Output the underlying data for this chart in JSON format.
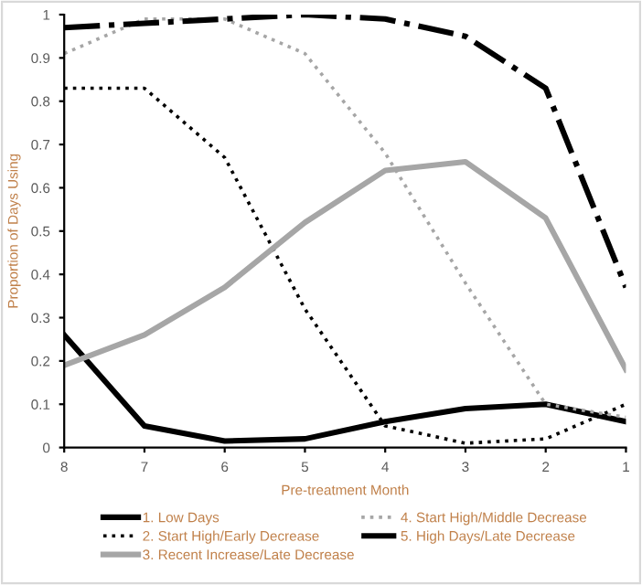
{
  "chart_data": {
    "type": "line",
    "xlabel": "Pre-treatment Month",
    "ylabel": "Proportion of Days Using",
    "categories": [
      "8",
      "7",
      "6",
      "5",
      "4",
      "3",
      "2",
      "1"
    ],
    "ylim": [
      0,
      1
    ],
    "yticks": [
      0,
      0.1,
      0.2,
      0.3,
      0.4,
      0.5,
      0.6,
      0.7,
      0.8,
      0.9,
      1
    ],
    "grid": false,
    "legend": "bottom",
    "marker": "none",
    "series": [
      {
        "name": "1. Low Days",
        "color": "#000000",
        "line_style": "solid",
        "values": [
          0.26,
          0.05,
          0.015,
          0.02,
          0.06,
          0.09,
          0.1,
          0.06
        ]
      },
      {
        "name": "2. Start High/Early Decrease",
        "color": "#000000",
        "line_style": "dotted",
        "values": [
          0.83,
          0.83,
          0.67,
          0.32,
          0.05,
          0.01,
          0.02,
          0.1
        ]
      },
      {
        "name": "3. Recent Increase/Late Decrease",
        "color": "#a6a6a6",
        "line_style": "solid",
        "values": [
          0.19,
          0.26,
          0.37,
          0.52,
          0.64,
          0.66,
          0.53,
          0.18
        ]
      },
      {
        "name": "4. Start High/Middle Decrease",
        "color": "#a6a6a6",
        "line_style": "dotted",
        "values": [
          0.91,
          0.99,
          0.99,
          0.91,
          0.68,
          0.38,
          0.1,
          0.07
        ]
      },
      {
        "name": "5. High Days/Late Decrease",
        "color": "#000000",
        "line_style": "dashdot",
        "values": [
          0.97,
          0.98,
          0.99,
          1.0,
          0.99,
          0.95,
          0.83,
          0.37
        ]
      }
    ]
  }
}
